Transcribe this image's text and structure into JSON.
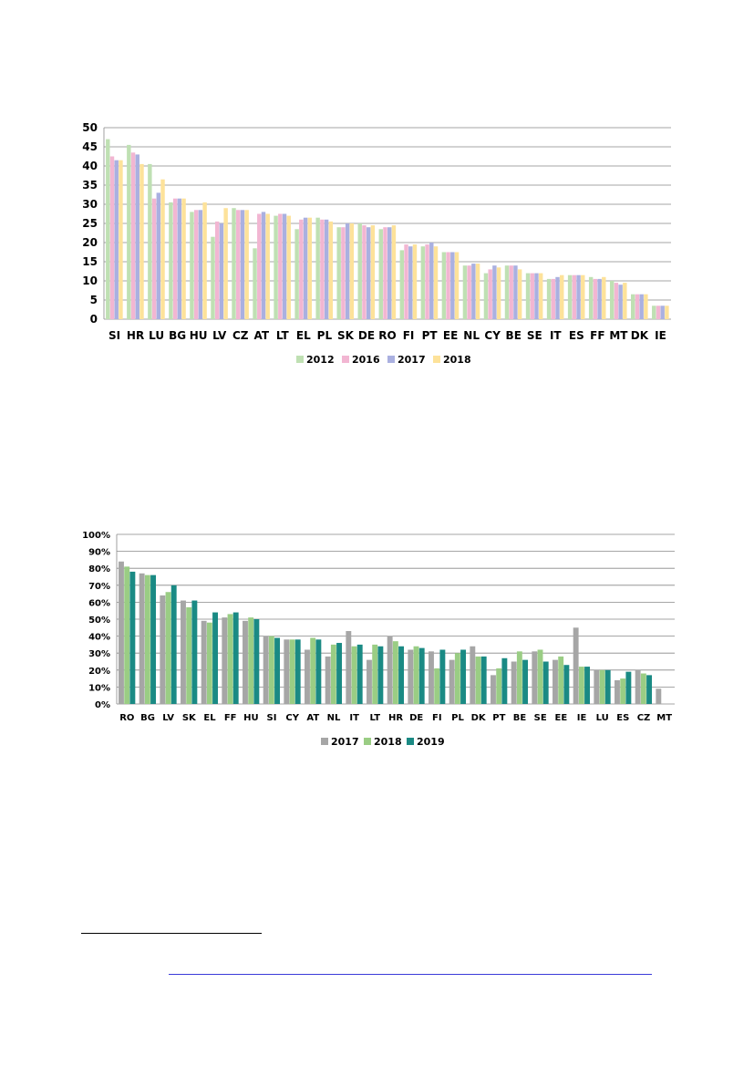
{
  "charts": [
    {
      "chart_data": {
        "type": "bar",
        "categories": [
          "SI",
          "HR",
          "LU",
          "BG",
          "HU",
          "LV",
          "CZ",
          "AT",
          "LT",
          "EL",
          "PL",
          "SK",
          "DE",
          "RO",
          "FI",
          "PT",
          "EE",
          "NL",
          "CY",
          "BE",
          "SE",
          "IT",
          "ES",
          "FF",
          "MT",
          "DK",
          "IE"
        ],
        "series": [
          {
            "name": "2012",
            "color": "#bfe0b3",
            "values": [
              47,
              45.5,
              40.5,
              30.5,
              28,
              21.5,
              29,
              18.5,
              27,
              23.5,
              26.5,
              24,
              25,
              23.5,
              18,
              19,
              17.5,
              14,
              12,
              14,
              12,
              10.5,
              11.5,
              11,
              10,
              6.5,
              3.5
            ]
          },
          {
            "name": "2016",
            "color": "#f2b6d2",
            "values": [
              42.5,
              43.5,
              31.5,
              31.5,
              28.5,
              25.5,
              28.5,
              27.5,
              27.5,
              26,
              26,
              24,
              24.5,
              24,
              19.5,
              19.5,
              17.5,
              14,
              13,
              14,
              12,
              10.5,
              11.5,
              10.5,
              9.5,
              6.5,
              3.5
            ]
          },
          {
            "name": "2017",
            "color": "#aab0e0",
            "values": [
              41.5,
              43,
              33,
              31.5,
              28.5,
              25,
              28.5,
              28,
              27.5,
              26.5,
              26,
              25,
              24,
              24,
              19,
              20,
              17.5,
              14.5,
              14,
              14,
              12,
              11,
              11.5,
              10.5,
              9,
              6.5,
              3.5
            ]
          },
          {
            "name": "2018",
            "color": "#fde29a",
            "values": [
              41.5,
              40.5,
              36.5,
              31.5,
              30.5,
              29,
              28.5,
              27.5,
              27,
              26.5,
              25.5,
              25,
              24.5,
              24.5,
              19.5,
              19,
              17.5,
              14.5,
              13.5,
              13,
              12,
              11.5,
              11.5,
              11,
              9.5,
              6.5,
              3.5
            ]
          }
        ],
        "yticks": [
          "0",
          "5",
          "10",
          "15",
          "20",
          "25",
          "30",
          "35",
          "40",
          "45",
          "50"
        ],
        "ylim": [
          0,
          50
        ],
        "grid": true,
        "legend_position": "bottom"
      }
    },
    {
      "chart_data": {
        "type": "bar",
        "categories": [
          "RO",
          "BG",
          "LV",
          "SK",
          "EL",
          "FF",
          "HU",
          "SI",
          "CY",
          "AT",
          "NL",
          "IT",
          "LT",
          "HR",
          "DE",
          "FI",
          "PL",
          "DK",
          "PT",
          "BE",
          "SE",
          "EE",
          "IE",
          "LU",
          "ES",
          "CZ",
          "MT"
        ],
        "series": [
          {
            "name": "2017",
            "color": "#a6a6a6",
            "values": [
              84,
              77,
              64,
              61,
              49,
              51,
              49,
              40,
              38,
              32,
              28,
              43,
              26,
              40,
              32,
              31,
              26,
              34,
              17,
              25,
              31,
              26,
              45,
              20,
              14,
              20,
              9
            ]
          },
          {
            "name": "2018",
            "color": "#9acd84",
            "values": [
              81,
              76,
              66,
              57,
              48,
              53,
              51,
              40,
              38,
              39,
              35,
              34,
              35,
              37,
              34,
              21,
              30,
              28,
              21,
              31,
              32,
              28,
              22,
              20,
              15,
              18,
              0
            ]
          },
          {
            "name": "2019",
            "color": "#1a8a84",
            "values": [
              78,
              76,
              70,
              61,
              54,
              54,
              50,
              39,
              38,
              38,
              36,
              35,
              34,
              34,
              33,
              32,
              32,
              28,
              27,
              26,
              25,
              23,
              22,
              20,
              19,
              17,
              0
            ]
          }
        ],
        "yticks": [
          "0%",
          "10%",
          "20%",
          "30%",
          "40%",
          "50%",
          "60%",
          "70%",
          "80%",
          "90%",
          "100%"
        ],
        "ylim": [
          0,
          100
        ],
        "grid": true,
        "legend_position": "bottom"
      }
    }
  ]
}
